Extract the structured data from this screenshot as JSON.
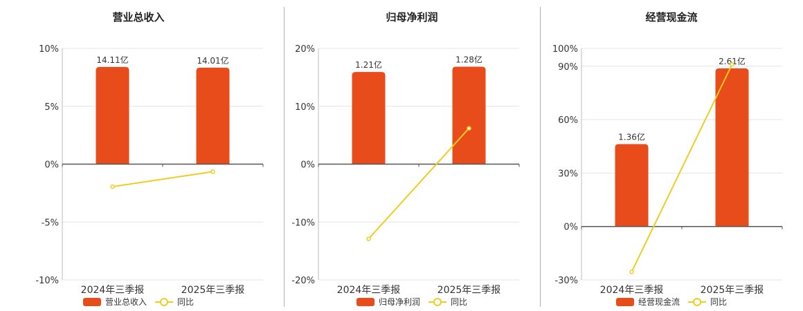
{
  "colors": {
    "bar": "#e84c1b",
    "line": "#f0cc1e",
    "grid": "#e4e4e4",
    "axis": "#555555"
  },
  "chart_data": [
    {
      "type": "bar",
      "title": "营业总收入",
      "categories": [
        "2024年三季报",
        "2025年三季报"
      ],
      "bar_series": {
        "name": "营业总收入",
        "values": [
          14.11,
          14.01
        ],
        "labels": [
          "14.11亿",
          "14.01亿"
        ]
      },
      "line_series": {
        "name": "同比",
        "values": [
          -1.95,
          -0.65
        ]
      },
      "y_ticks": [
        10,
        5,
        0,
        -5,
        -10
      ],
      "y_tick_labels": [
        "10%",
        "5%",
        "0%",
        "-5%",
        "-10%"
      ],
      "ylim": [
        -10,
        10
      ],
      "bar_scale_max": 16.8,
      "legend": "bottom"
    },
    {
      "type": "bar",
      "title": "归母净利润",
      "categories": [
        "2024年三季报",
        "2025年三季报"
      ],
      "bar_series": {
        "name": "归母净利润",
        "values": [
          1.21,
          1.28
        ],
        "labels": [
          "1.21亿",
          "1.28亿"
        ]
      },
      "line_series": {
        "name": "同比",
        "values": [
          -12.9,
          6.2
        ]
      },
      "y_ticks": [
        20,
        10,
        0,
        -10,
        -20
      ],
      "y_tick_labels": [
        "20%",
        "10%",
        "0%",
        "-10%",
        "-20%"
      ],
      "ylim": [
        -20,
        20
      ],
      "bar_scale_max": 1.52,
      "legend": "bottom"
    },
    {
      "type": "bar",
      "title": "经营现金流",
      "categories": [
        "2024年三季报",
        "2025年三季报"
      ],
      "bar_series": {
        "name": "经营现金流",
        "values": [
          1.36,
          2.61
        ],
        "labels": [
          "1.36亿",
          "2.61亿"
        ]
      },
      "line_series": {
        "name": "同比",
        "values": [
          -25.5,
          91
        ]
      },
      "y_ticks": [
        100,
        90,
        60,
        30,
        0,
        -30
      ],
      "y_tick_labels": [
        "100%",
        "90%",
        "60%",
        "30%",
        "0%",
        "-30%"
      ],
      "ylim": [
        -30,
        100
      ],
      "bar_scale_max": 2.94,
      "legend": "bottom"
    }
  ]
}
